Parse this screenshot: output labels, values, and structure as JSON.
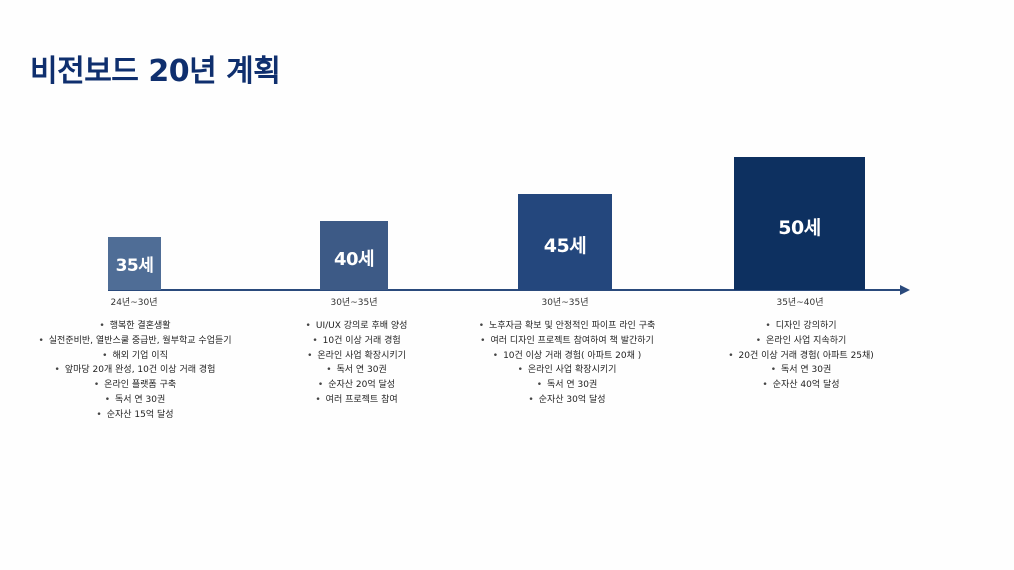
{
  "title": "비전보드 20년 계획",
  "colors": {
    "title": "#0f2f6e",
    "axis": "#2a4a7c",
    "stage1": "#4f6d96",
    "stage2": "#3d5a86",
    "stage3": "#24477d",
    "stage4": "#0d3060"
  },
  "stages": [
    {
      "age": "35세",
      "range": "24년~30년",
      "goals": [
        "행복한 결혼생활",
        "실전준비반, 열반스쿨 중급반, 월부학교 수업듣기",
        "해외 기업 이직",
        "앞마당 20개 완성, 10건 이상 거래 경험",
        "온라인 플랫폼 구축",
        "독서 연 30권",
        "순자산 15억 달성"
      ]
    },
    {
      "age": "40세",
      "range": "30년~35년",
      "goals": [
        "UI/UX 강의로 후배 양성",
        "10건 이상 거래 경험",
        "온라인 사업 확장시키기",
        "독서 연 30권",
        "순자산 20억 달성",
        "여러 프로젝트 참여"
      ]
    },
    {
      "age": "45세",
      "range": "30년~35년",
      "goals": [
        "노후자금 확보 및 안정적인 파이프 라인 구축",
        "여러 디자인 프로젝트 참여하여 책 발간하기",
        "10건 이상 거래 경험( 아파트 20채 )",
        "온라인 사업 확장시키기",
        "독서 연 30권",
        "순자산 30억 달성"
      ]
    },
    {
      "age": "50세",
      "range": "35년~40년",
      "goals": [
        "디자인 강의하기",
        "온라인 사업 지속하기",
        "20건 이상 거래 경험( 아파트 25채)",
        "독서 연 30권",
        "순자산 40억 달성"
      ]
    }
  ]
}
